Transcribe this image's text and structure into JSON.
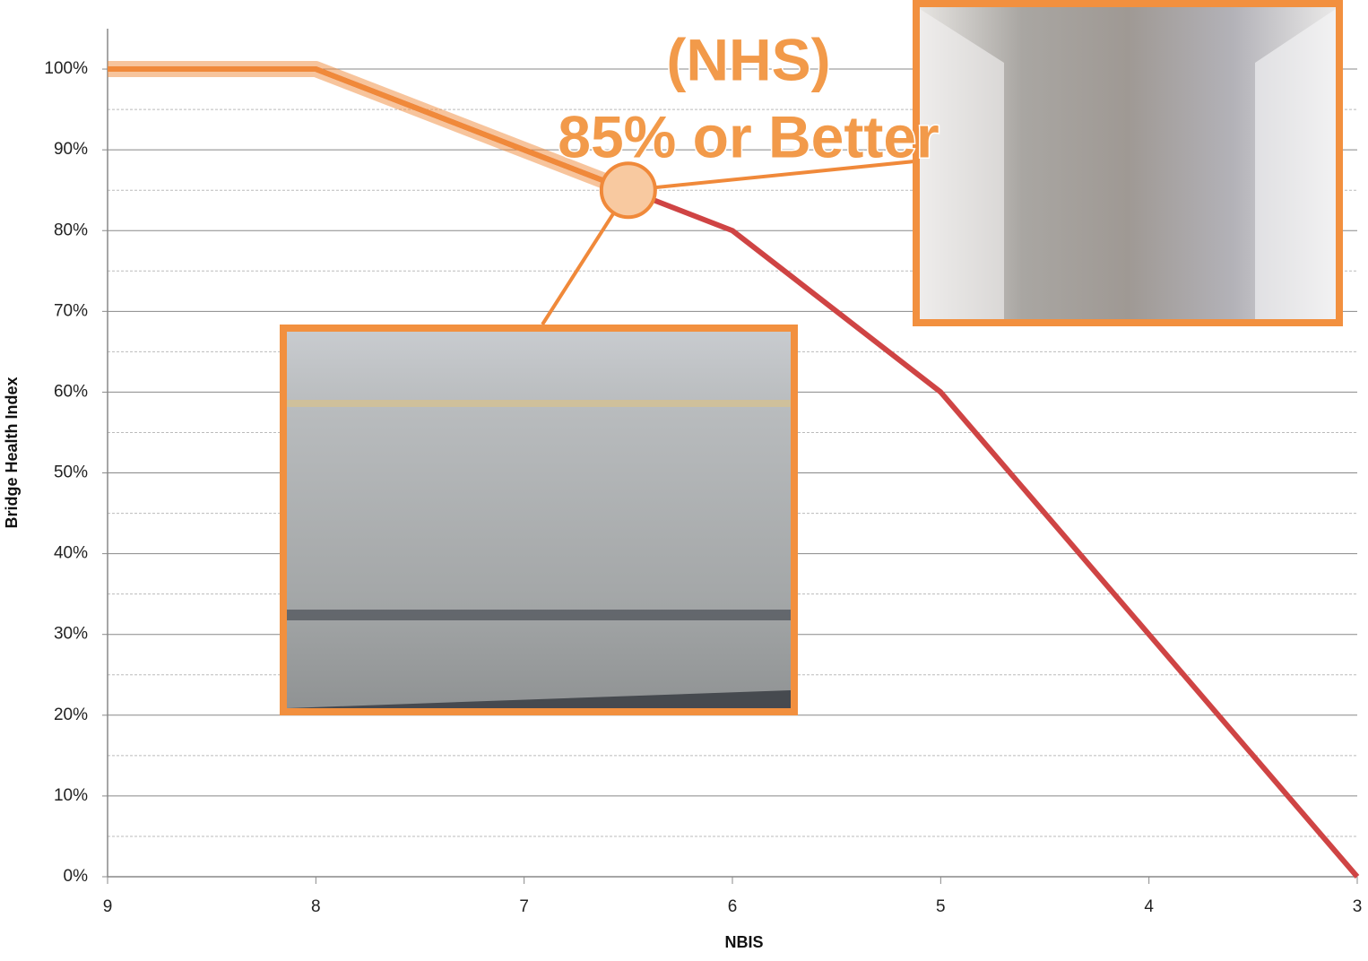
{
  "chart_data": {
    "type": "line",
    "x_label": "NBIS",
    "y_label": "Bridge Health Index",
    "annotation": [
      "(NHS)",
      "85% or Better"
    ],
    "x": [
      9,
      8,
      7,
      6,
      5,
      4,
      3
    ],
    "series": [
      {
        "color": "#cf4444",
        "values": [
          100,
          100,
          90,
          80,
          60,
          30,
          0
        ]
      }
    ],
    "highlight": {
      "x": 6.5,
      "y": 85,
      "color": "#f0893a"
    },
    "xlim": [
      9,
      3
    ],
    "ylim": [
      0,
      105
    ],
    "xticks": [
      9,
      8,
      7,
      6,
      5,
      4,
      3
    ],
    "yticks": [
      {
        "value": 0,
        "label": "0%"
      },
      {
        "value": 10,
        "label": "10%"
      },
      {
        "value": 20,
        "label": "20%"
      },
      {
        "value": 30,
        "label": "30%"
      },
      {
        "value": 40,
        "label": "40%"
      },
      {
        "value": 50,
        "label": "50%"
      },
      {
        "value": 60,
        "label": "60%"
      },
      {
        "value": 70,
        "label": "70%"
      },
      {
        "value": 80,
        "label": "80%"
      },
      {
        "value": 90,
        "label": "90%"
      },
      {
        "value": 100,
        "label": "100%"
      }
    ],
    "minor_yticks": [
      5,
      15,
      25,
      35,
      45,
      55,
      65,
      75,
      85,
      95
    ],
    "grid": true
  }
}
